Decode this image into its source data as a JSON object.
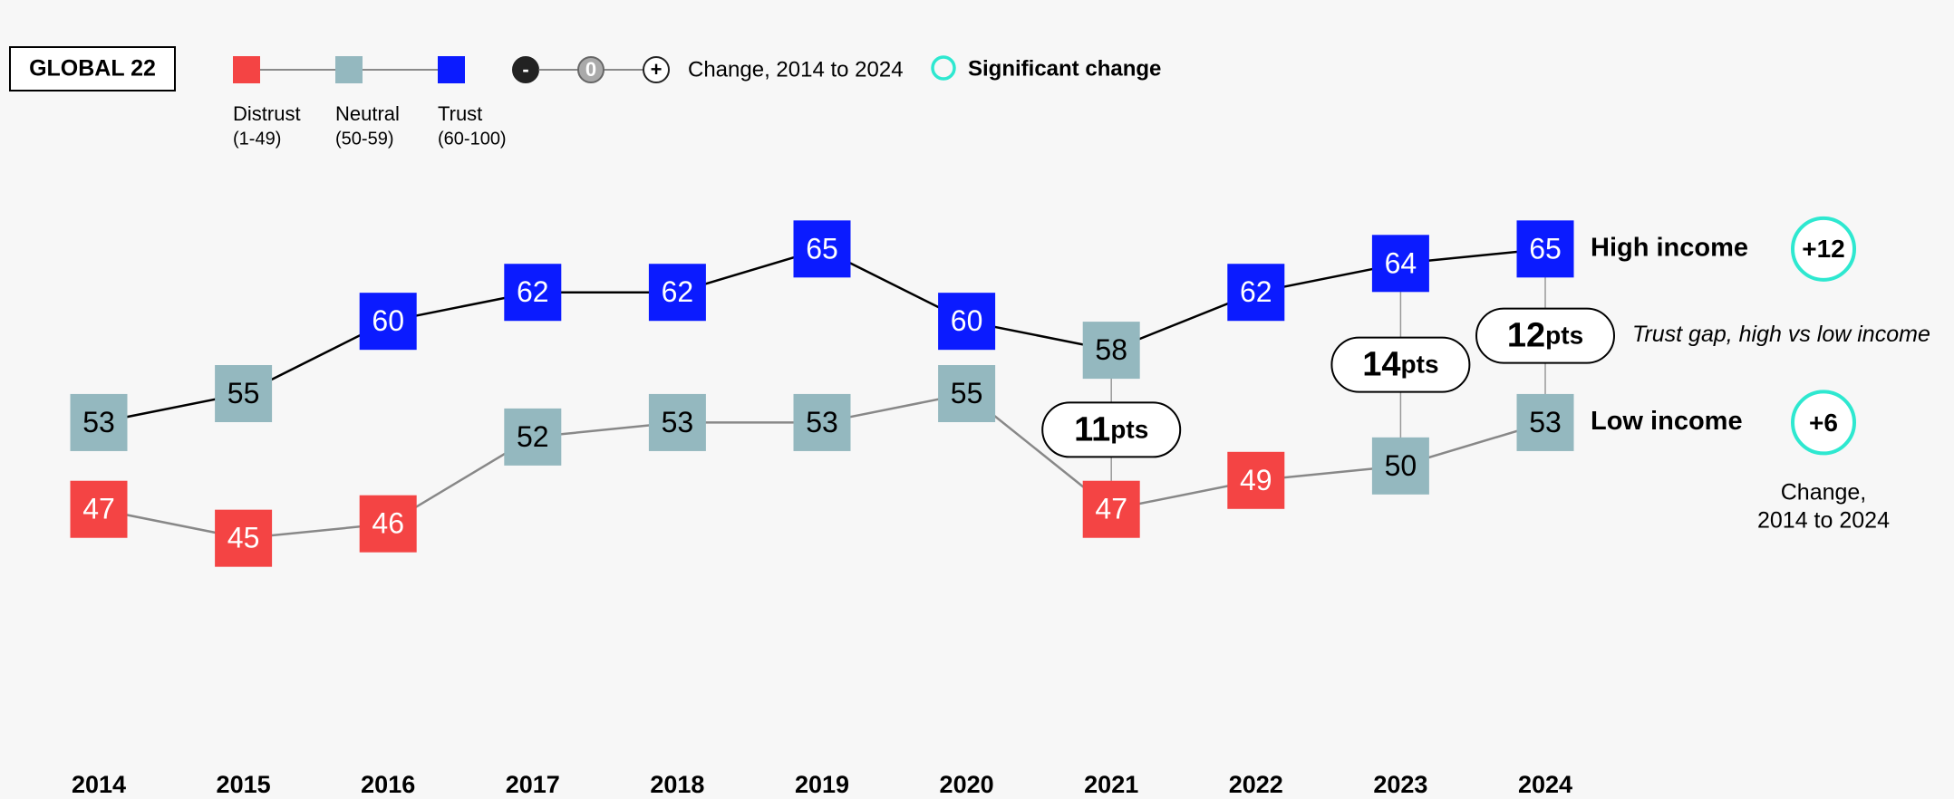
{
  "chart_data": {
    "type": "line",
    "badge": "GLOBAL 22",
    "categories": [
      "2014",
      "2015",
      "2016",
      "2017",
      "2018",
      "2019",
      "2020",
      "2021",
      "2022",
      "2023",
      "2024"
    ],
    "series": [
      {
        "name": "High income",
        "color": "#000000",
        "values": [
          53,
          55,
          60,
          62,
          62,
          65,
          60,
          58,
          62,
          64,
          65
        ]
      },
      {
        "name": "Low income",
        "color": "#888888",
        "values": [
          47,
          45,
          46,
          52,
          53,
          53,
          55,
          47,
          49,
          50,
          53
        ]
      }
    ],
    "ylim": [
      40,
      70
    ],
    "color_bands": [
      {
        "name": "Distrust",
        "range": "(1-49)",
        "min": 1,
        "max": 49,
        "color": "#f44444"
      },
      {
        "name": "Neutral",
        "range": "(50-59)",
        "min": 50,
        "max": 59,
        "color": "#94b8bf"
      },
      {
        "name": "Trust",
        "range": "(60-100)",
        "min": 60,
        "max": 100,
        "color": "#0b1bff"
      }
    ],
    "change_symbols": [
      "-",
      "0",
      "+"
    ],
    "change_legend": "Change, 2014 to 2024",
    "significant_legend": "Significant change",
    "significant_color": "#2ee8d0",
    "gap_values": [
      null,
      null,
      null,
      null,
      null,
      null,
      null,
      11,
      null,
      14,
      12
    ],
    "gap_unit": "pts",
    "gap_annotation": "Trust gap, high vs low income",
    "change": {
      "values": [
        12,
        6
      ],
      "value_labels": [
        "+12",
        "+6"
      ],
      "significant": [
        true,
        true
      ],
      "label": [
        "Change,",
        "2014 to 2024"
      ]
    }
  }
}
